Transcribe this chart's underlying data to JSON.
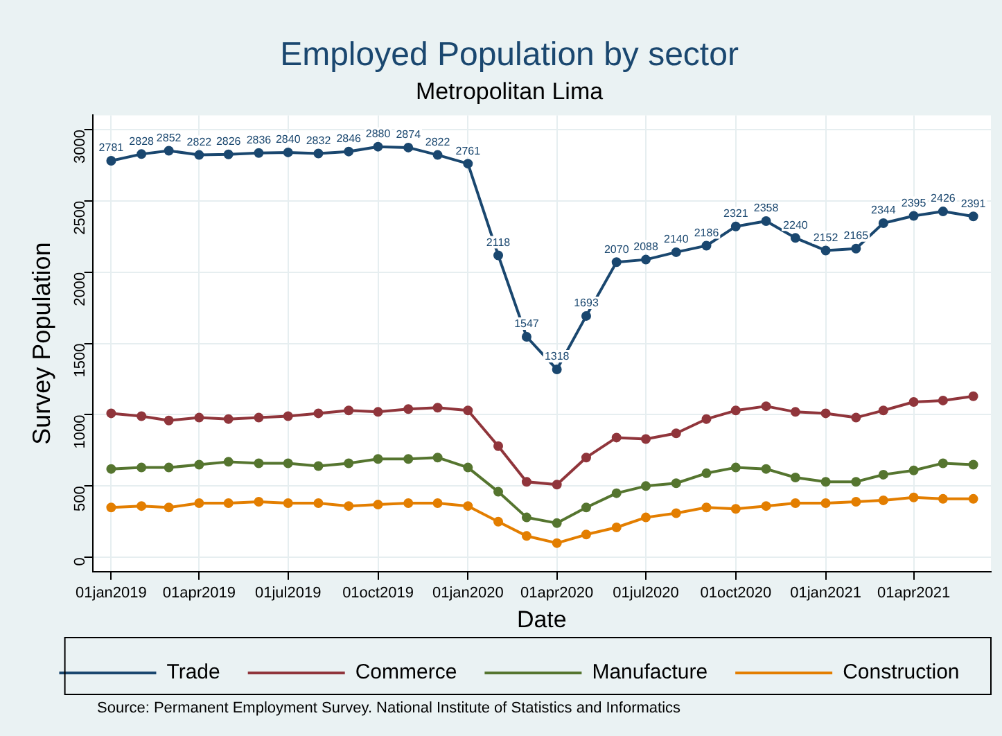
{
  "chart_data": {
    "type": "line",
    "title": "Employed Population by sector",
    "subtitle": "Metropolitan Lima",
    "xlabel": "Date",
    "ylabel": "Survey Population",
    "x": [
      "2019-01-01",
      "2019-02-01",
      "2019-03-01",
      "2019-04-01",
      "2019-05-01",
      "2019-06-01",
      "2019-07-01",
      "2019-08-01",
      "2019-09-01",
      "2019-10-01",
      "2019-11-01",
      "2019-12-01",
      "2020-01-01",
      "2020-02-01",
      "2020-03-01",
      "2020-04-01",
      "2020-05-01",
      "2020-06-01",
      "2020-07-01",
      "2020-08-01",
      "2020-09-01",
      "2020-10-01",
      "2020-11-01",
      "2020-12-01",
      "2021-01-01",
      "2021-02-01",
      "2021-03-01",
      "2021-04-01",
      "2021-05-01",
      "2021-06-01"
    ],
    "series": [
      {
        "name": "Trade",
        "color": "#1a476f",
        "values": [
          2781,
          2828,
          2852,
          2822,
          2826,
          2836,
          2840,
          2832,
          2846,
          2880,
          2874,
          2822,
          2761,
          2118,
          1547,
          1318,
          1693,
          2070,
          2088,
          2140,
          2186,
          2321,
          2358,
          2240,
          2152,
          2165,
          2344,
          2395,
          2426,
          2391
        ],
        "value_labels": [
          "2781",
          "2828",
          "2852",
          "2822",
          "2826",
          "2836",
          "2840",
          "2832",
          "2846",
          "2880",
          "2874",
          "2822",
          "2761",
          "2118",
          "1547",
          "1318",
          "1693",
          "2070",
          "2088",
          "2140",
          "2186",
          "2321",
          "2358",
          "2240",
          "2152",
          "2165",
          "2344",
          "2395",
          "2426",
          "2391"
        ]
      },
      {
        "name": "Commerce",
        "color": "#90353b",
        "values": [
          1010,
          990,
          960,
          980,
          970,
          980,
          990,
          1010,
          1030,
          1020,
          1040,
          1050,
          1030,
          780,
          530,
          510,
          700,
          840,
          830,
          870,
          970,
          1030,
          1060,
          1020,
          1010,
          980,
          1030,
          1090,
          1100,
          1130
        ]
      },
      {
        "name": "Manufacture",
        "color": "#55752f",
        "values": [
          620,
          630,
          630,
          650,
          670,
          660,
          660,
          640,
          660,
          690,
          690,
          700,
          630,
          460,
          280,
          240,
          350,
          450,
          500,
          520,
          590,
          630,
          620,
          560,
          530,
          530,
          580,
          610,
          660,
          650
        ]
      },
      {
        "name": "Construction",
        "color": "#e37e00",
        "values": [
          350,
          360,
          350,
          380,
          380,
          390,
          380,
          380,
          360,
          370,
          380,
          380,
          360,
          250,
          150,
          100,
          160,
          210,
          280,
          310,
          350,
          340,
          360,
          380,
          380,
          390,
          400,
          420,
          410,
          410
        ]
      }
    ],
    "xlim": [
      "2018-12-13",
      "2021-06-19"
    ],
    "xticks": [
      {
        "value": "2019-01-01",
        "label": "01jan2019"
      },
      {
        "value": "2019-04-01",
        "label": "01apr2019"
      },
      {
        "value": "2019-07-01",
        "label": "01jul2019"
      },
      {
        "value": "2019-10-01",
        "label": "01oct2019"
      },
      {
        "value": "2020-01-01",
        "label": "01jan2020"
      },
      {
        "value": "2020-04-01",
        "label": "01apr2020"
      },
      {
        "value": "2020-07-01",
        "label": "01jul2020"
      },
      {
        "value": "2020-10-01",
        "label": "01oct2020"
      },
      {
        "value": "2021-01-01",
        "label": "01jan2021"
      },
      {
        "value": "2021-04-01",
        "label": "01apr2021"
      }
    ],
    "ylim": [
      -100,
      3100
    ],
    "yticks": [
      0,
      500,
      1000,
      1500,
      2000,
      2500,
      3000
    ],
    "grid": true,
    "legend": "bottom",
    "marker": "circle",
    "line_style": "solid",
    "annotations": [
      "Source: Permanent Employment Survey. National Institute of Statistics and Informatics"
    ]
  }
}
